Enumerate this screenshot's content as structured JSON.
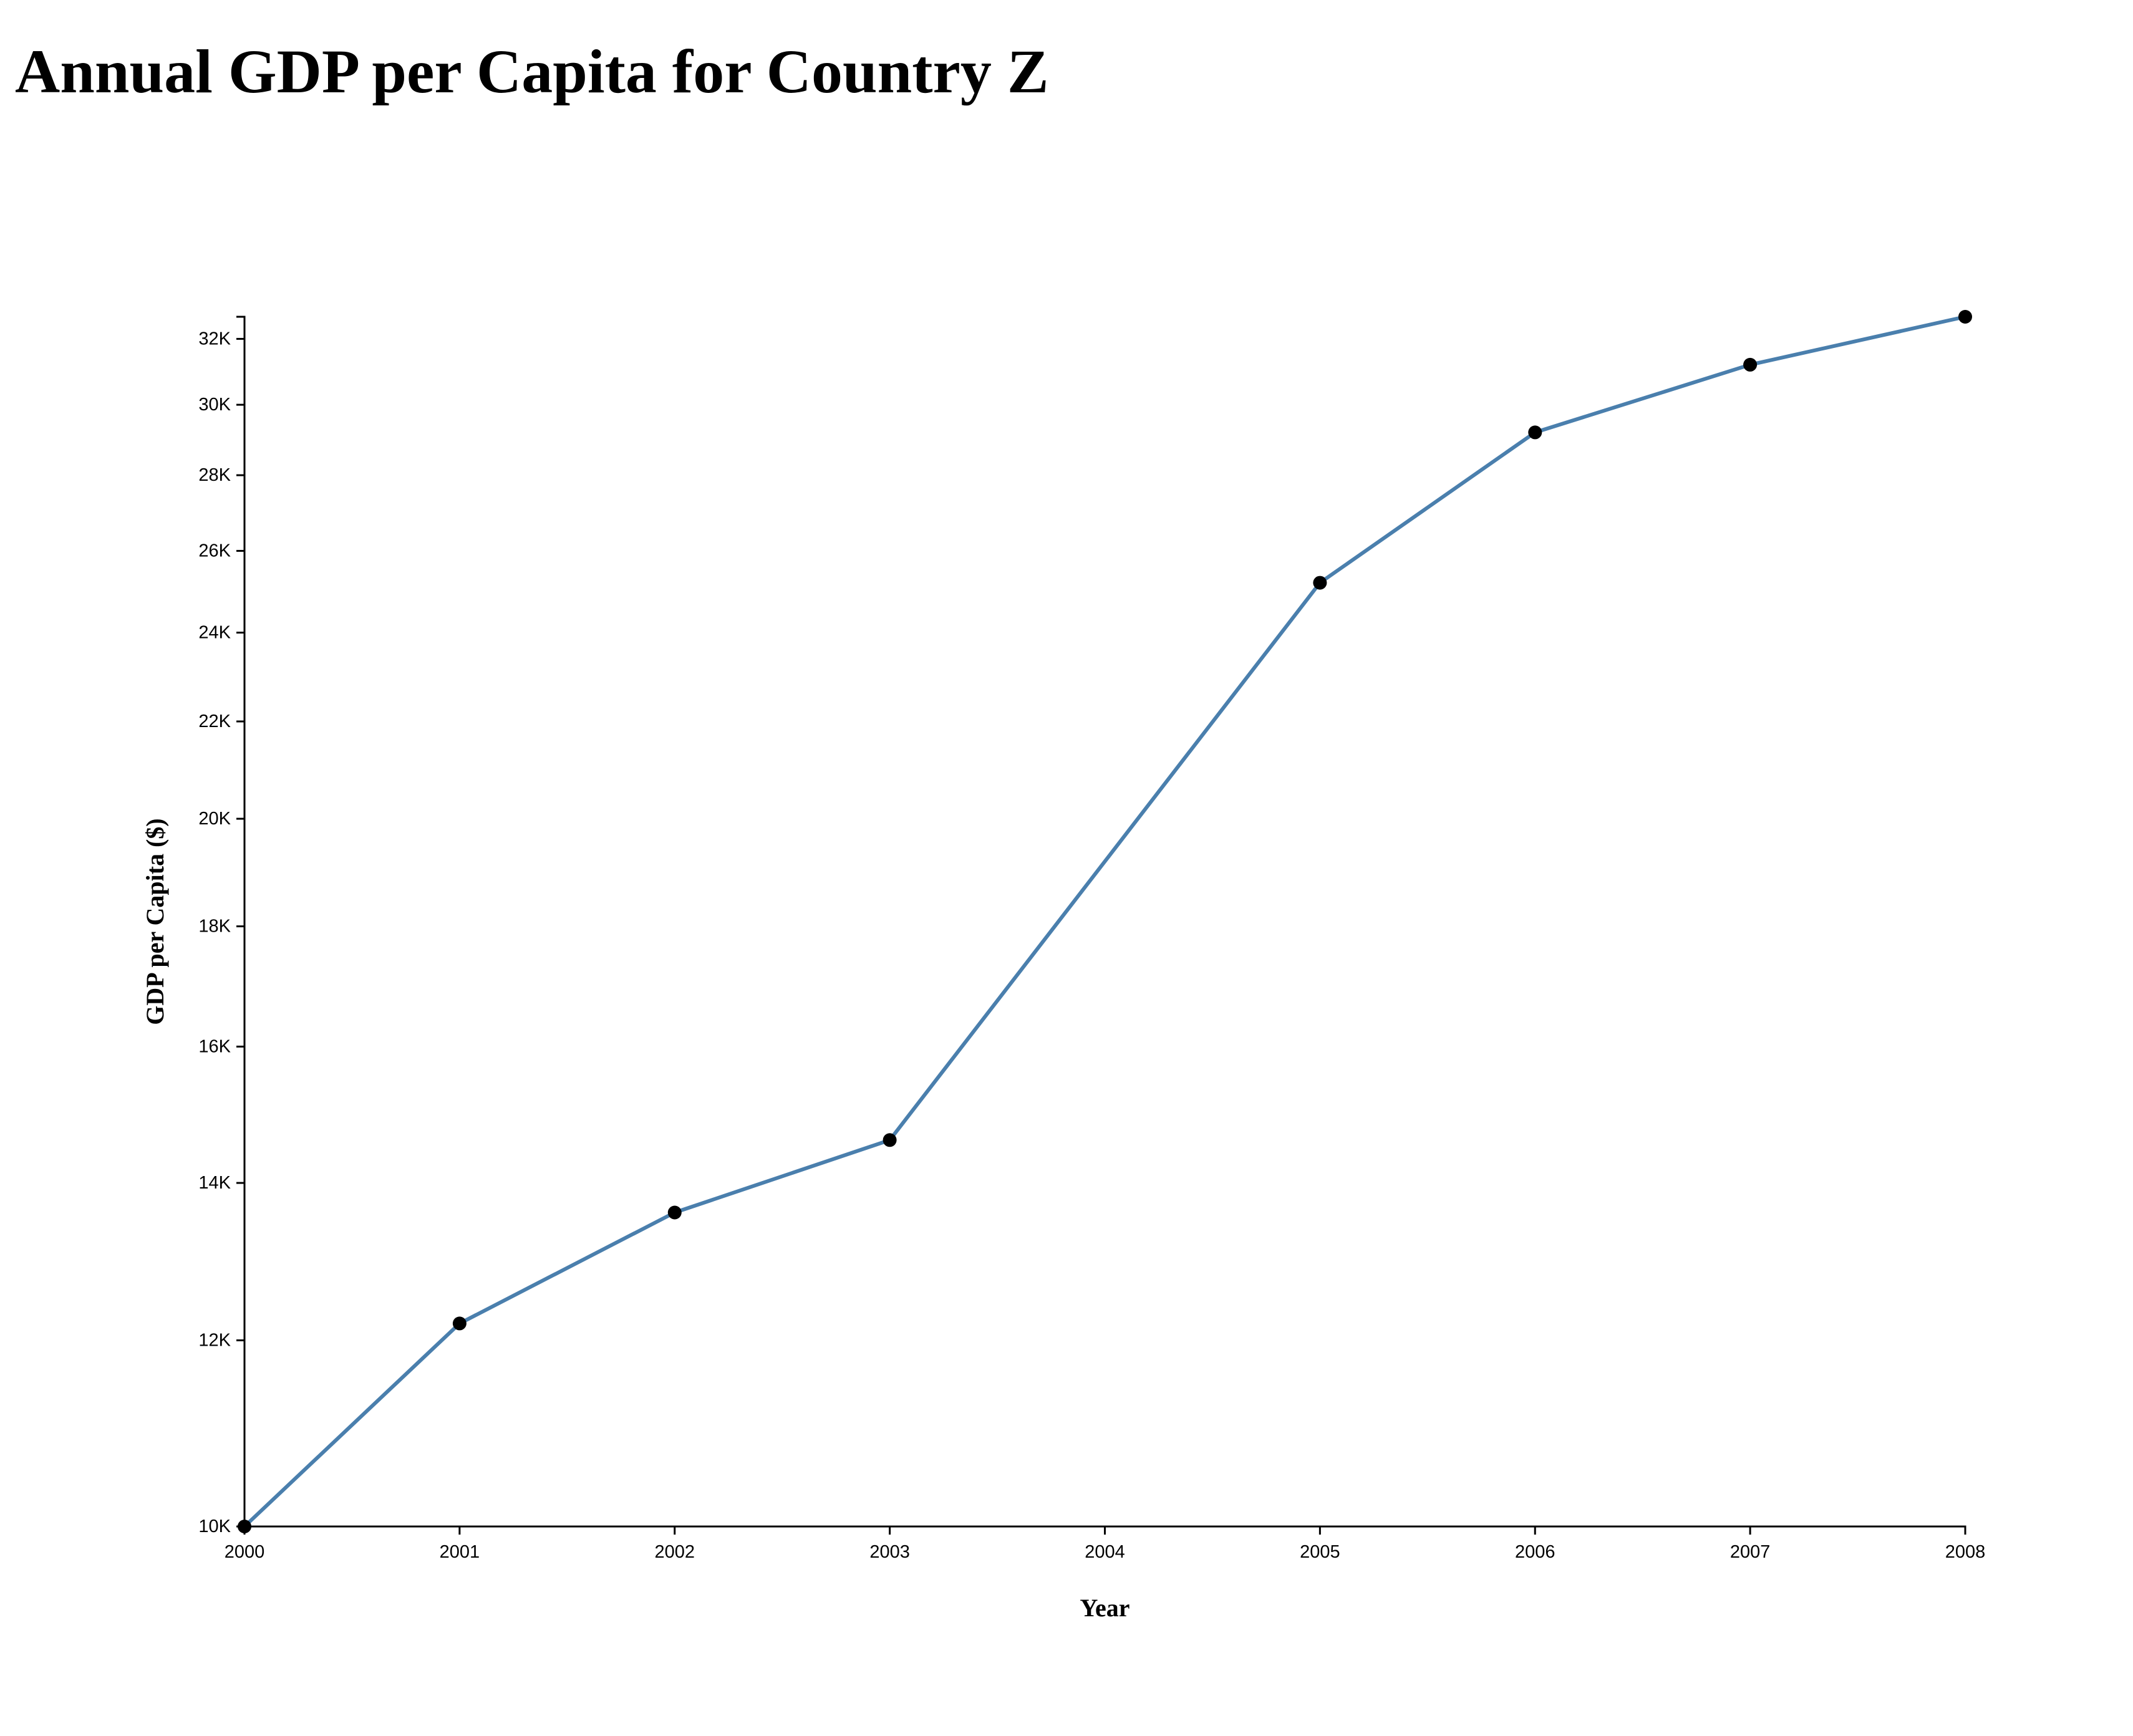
{
  "chart_data": {
    "type": "line",
    "title": "Annual GDP per Capita for Country Z",
    "xlabel": "Year",
    "ylabel": "GDP per Capita ($)",
    "x": [
      2000,
      2001,
      2002,
      2003,
      2005,
      2006,
      2007,
      2008
    ],
    "series": [
      {
        "values": [
          10000,
          12200,
          13600,
          14600,
          25200,
          29200,
          31200,
          32700
        ]
      }
    ],
    "xlim": [
      2000,
      2008
    ],
    "ylim": [
      10000,
      32700
    ],
    "y_scale": "log",
    "x_ticks": [
      "2000",
      "2001",
      "2002",
      "2003",
      "2004",
      "2005",
      "2006",
      "2007",
      "2008"
    ],
    "y_ticks": [
      {
        "value": 10000,
        "label": "10K"
      },
      {
        "value": 12000,
        "label": "12K"
      },
      {
        "value": 14000,
        "label": "14K"
      },
      {
        "value": 16000,
        "label": "16K"
      },
      {
        "value": 18000,
        "label": "18K"
      },
      {
        "value": 20000,
        "label": "20K"
      },
      {
        "value": 22000,
        "label": "22K"
      },
      {
        "value": 24000,
        "label": "24K"
      },
      {
        "value": 26000,
        "label": "26K"
      },
      {
        "value": 28000,
        "label": "28K"
      },
      {
        "value": 30000,
        "label": "30K"
      },
      {
        "value": 32000,
        "label": "32K"
      }
    ],
    "grid": false,
    "line_color": "#4a7fad",
    "marker_color": "#000000"
  }
}
